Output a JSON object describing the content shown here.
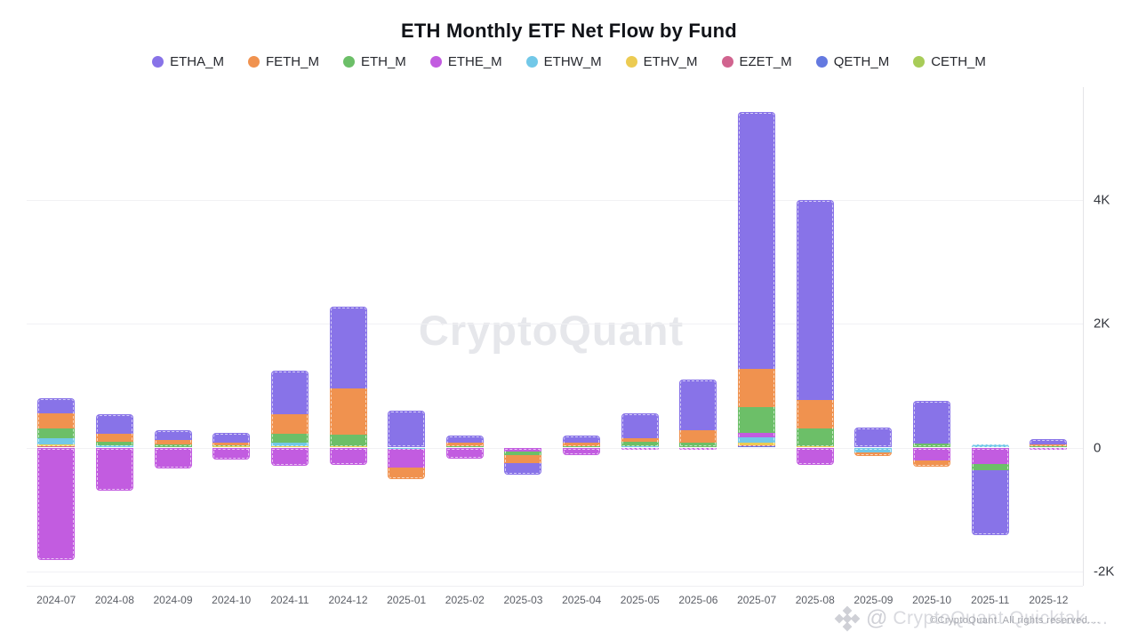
{
  "title": "ETH Monthly ETF Net Flow by Fund",
  "watermarks": {
    "center": "CryptoQuant",
    "bottom_right_at": "@",
    "bottom_right": "CryptoQuant Quicktak....",
    "bottom_right_overlay": "©CryptoQuant. All rights reserved...."
  },
  "chart_data": {
    "type": "bar",
    "stacked": true,
    "title": "ETH Monthly ETF Net Flow by Fund",
    "xlabel": "",
    "ylabel": "",
    "ylim": [
      -2000,
      5600
    ],
    "grid": true,
    "legend_position": "top",
    "y_ticks": [
      {
        "label": "4K",
        "value": 4000
      },
      {
        "label": "2K",
        "value": 2000
      },
      {
        "label": "0",
        "value": 0
      },
      {
        "label": "-2K",
        "value": -2000
      }
    ],
    "categories": [
      "2024-07",
      "2024-08",
      "2024-09",
      "2024-10",
      "2024-11",
      "2024-12",
      "2025-01",
      "2025-02",
      "2025-03",
      "2025-04",
      "2025-05",
      "2025-06",
      "2025-07",
      "2025-08",
      "2025-09",
      "2025-10",
      "2025-11",
      "2025-12"
    ],
    "series": [
      {
        "name": "ETHA_M",
        "color": "#8873e8",
        "values": [
          240,
          310,
          160,
          165,
          700,
          1330,
          595,
          120,
          -195,
          105,
          400,
          825,
          4150,
          3230,
          320,
          690,
          -1040,
          75
        ]
      },
      {
        "name": "FETH_M",
        "color": "#f0924f",
        "values": [
          235,
          135,
          60,
          40,
          320,
          740,
          -180,
          60,
          -130,
          60,
          60,
          205,
          610,
          460,
          -60,
          -95,
          0,
          35
        ]
      },
      {
        "name": "ETH_M",
        "color": "#6cbf68",
        "values": [
          160,
          50,
          55,
          20,
          135,
          190,
          0,
          15,
          -50,
          25,
          70,
          75,
          430,
          280,
          0,
          70,
          -110,
          20
        ]
      },
      {
        "name": "ETHE_M",
        "color": "#c25ce0",
        "values": [
          -1815,
          -700,
          -340,
          -190,
          -290,
          -280,
          -310,
          -175,
          -70,
          -115,
          -30,
          -30,
          60,
          -280,
          0,
          -215,
          -260,
          -30
        ]
      },
      {
        "name": "ETHW_M",
        "color": "#72c8e8",
        "values": [
          100,
          40,
          0,
          0,
          60,
          0,
          -20,
          0,
          0,
          0,
          20,
          0,
          95,
          0,
          -70,
          0,
          35,
          0
        ]
      },
      {
        "name": "ETHV_M",
        "color": "#eccb52",
        "values": [
          40,
          0,
          0,
          15,
          25,
          20,
          0,
          0,
          0,
          0,
          0,
          0,
          45,
          25,
          0,
          0,
          10,
          0
        ]
      },
      {
        "name": "EZET_M",
        "color": "#d1648f",
        "values": [
          15,
          0,
          0,
          0,
          0,
          0,
          0,
          0,
          0,
          0,
          0,
          0,
          15,
          0,
          -10,
          0,
          0,
          0
        ]
      },
      {
        "name": "QETH_M",
        "color": "#6479e0",
        "values": [
          0,
          0,
          0,
          0,
          0,
          0,
          0,
          0,
          0,
          0,
          0,
          0,
          10,
          0,
          0,
          0,
          0,
          0
        ]
      },
      {
        "name": "CETH_M",
        "color": "#a8cc58",
        "values": [
          0,
          0,
          0,
          0,
          0,
          0,
          0,
          0,
          0,
          0,
          0,
          0,
          5,
          0,
          0,
          0,
          0,
          0
        ]
      }
    ]
  }
}
